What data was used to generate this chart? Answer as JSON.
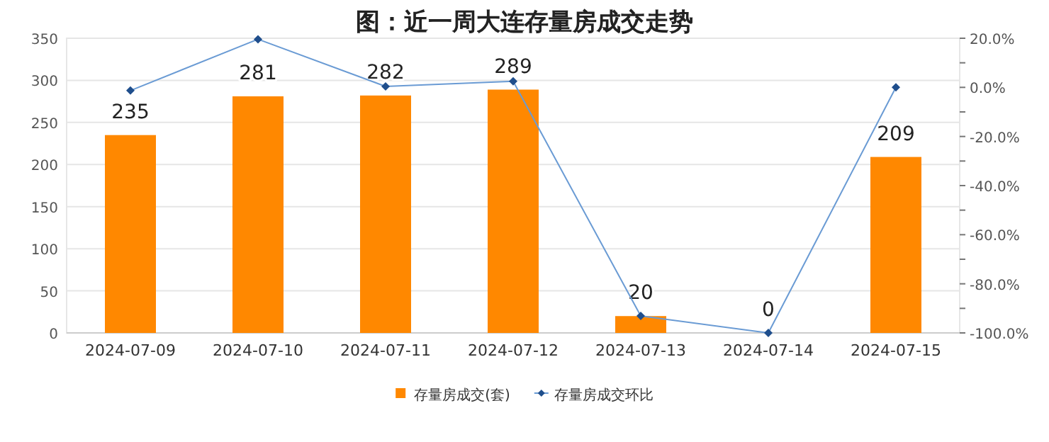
{
  "chart_data": {
    "type": "bar",
    "title": "图：近一周大连存量房成交走势",
    "categories": [
      "2024-07-09",
      "2024-07-10",
      "2024-07-11",
      "2024-07-12",
      "2024-07-13",
      "2024-07-14",
      "2024-07-15"
    ],
    "series": [
      {
        "name": "存量房成交(套)",
        "color": "#ff8800",
        "values": [
          235,
          281,
          282,
          289,
          20,
          0,
          209
        ],
        "value_labels": [
          "235",
          "281",
          "282",
          "289",
          "20",
          "0",
          "209"
        ]
      },
      {
        "name": "存量房成交环比",
        "type": "line",
        "axis": "y2",
        "color": "#6a9bd4",
        "marker": "diamond",
        "values": [
          -1.3,
          19.6,
          0.4,
          2.5,
          -93.1,
          -100,
          0
        ]
      }
    ],
    "ylim": [
      0,
      350
    ],
    "yticks": [
      0,
      50,
      100,
      150,
      200,
      250,
      300,
      350
    ],
    "y2lim": [
      -100,
      20
    ],
    "y2ticks": [
      {
        "value": 20,
        "label": "20.0%"
      },
      {
        "value": 10,
        "label": null
      },
      {
        "value": 0,
        "label": "0.0%"
      },
      {
        "value": -10,
        "label": null
      },
      {
        "value": -20,
        "label": "-20.0%"
      },
      {
        "value": -30,
        "label": null
      },
      {
        "value": -40,
        "label": "-40.0%"
      },
      {
        "value": -50,
        "label": null
      },
      {
        "value": -60,
        "label": "-60.0%"
      },
      {
        "value": -70,
        "label": null
      },
      {
        "value": -80,
        "label": "-80.0%"
      },
      {
        "value": -90,
        "label": null
      },
      {
        "value": -100,
        "label": "-100.0%"
      }
    ],
    "grid": "y",
    "legend": "bottom"
  }
}
